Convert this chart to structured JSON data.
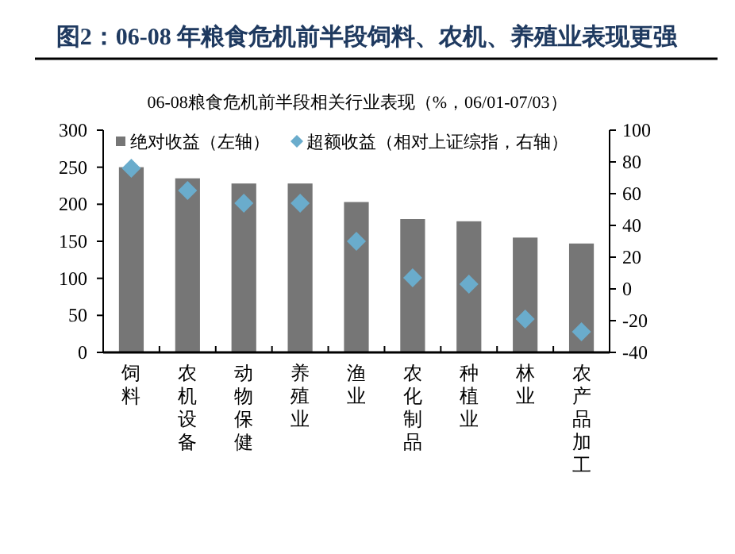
{
  "chart_data": {
    "type": "bar",
    "title": "图2：06-08 年粮食危机前半段饲料、农机、养殖业表现更强",
    "subtitle": "06-08粮食危机前半段相关行业表现（%，06/01-07/03）",
    "categories": [
      "饲料",
      "农机设备",
      "动物保健",
      "养殖业",
      "渔业",
      "农化制品",
      "种植业",
      "林业",
      "农产品加工"
    ],
    "series": [
      {
        "name": "绝对收益（左轴）",
        "color": "#767676",
        "values": [
          250,
          235,
          228,
          228,
          203,
          180,
          177,
          155,
          147
        ]
      },
      {
        "name": "超额收益（相对上证综指，右轴）",
        "type": "scatter",
        "axis": "y2",
        "marker": "diamond",
        "color": "#6aaccc",
        "values": [
          76,
          62,
          54,
          54,
          30,
          7,
          3,
          -19,
          -27
        ]
      }
    ],
    "ylim": [
      0,
      300
    ],
    "yticks": [
      0,
      50,
      100,
      150,
      200,
      250,
      300
    ],
    "y2lim": [
      -40,
      100
    ],
    "y2ticks": [
      -40,
      -20,
      0,
      20,
      40,
      60,
      80,
      100
    ],
    "legend": "top",
    "grid": false
  }
}
